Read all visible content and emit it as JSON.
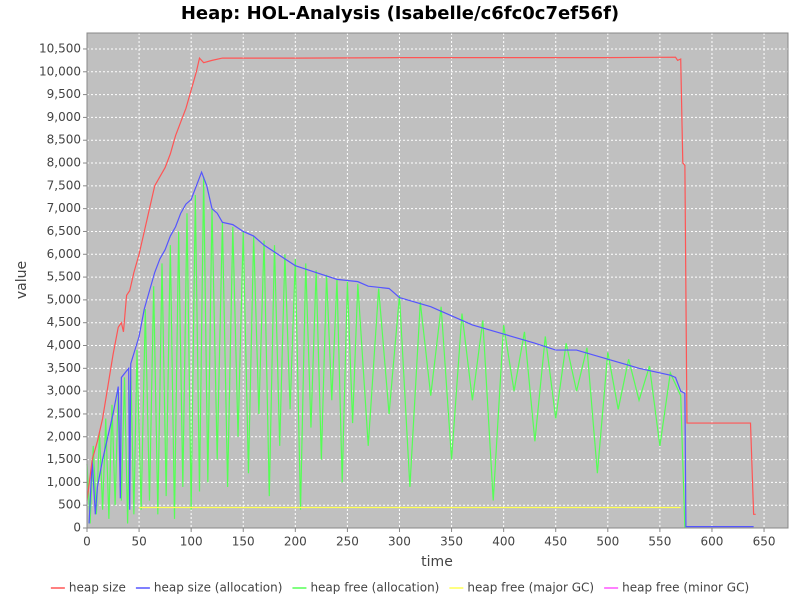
{
  "chart_data": {
    "type": "line",
    "title": "Heap: HOL-Analysis (Isabelle/c6fc0c7ef56f)",
    "x_label": "time",
    "y_label": "value",
    "xlim": [
      0,
      673
    ],
    "ylim": [
      0,
      10850
    ],
    "xticks": [
      0,
      50,
      100,
      150,
      200,
      250,
      300,
      350,
      400,
      450,
      500,
      550,
      600,
      650
    ],
    "yticks": [
      0,
      500,
      {
        "value": 1000,
        "label": "1,000"
      },
      {
        "value": 1500,
        "label": "1,500"
      },
      {
        "value": 2000,
        "label": "2,000"
      },
      {
        "value": 2500,
        "label": "2,500"
      },
      {
        "value": 3000,
        "label": "3,000"
      },
      {
        "value": 3500,
        "label": "3,500"
      },
      {
        "value": 4000,
        "label": "4,000"
      },
      {
        "value": 4500,
        "label": "4,500"
      },
      {
        "value": 5000,
        "label": "5,000"
      },
      {
        "value": 5500,
        "label": "5,500"
      },
      {
        "value": 6000,
        "label": "6,000"
      },
      {
        "value": 6500,
        "label": "6,500"
      },
      {
        "value": 7000,
        "label": "7,000"
      },
      {
        "value": 7500,
        "label": "7,500"
      },
      {
        "value": 8000,
        "label": "8,000"
      },
      {
        "value": 8500,
        "label": "8,500"
      },
      {
        "value": 9000,
        "label": "9,000"
      },
      {
        "value": 9500,
        "label": "9,500"
      },
      {
        "value": 10000,
        "label": "10,000"
      },
      {
        "value": 10500,
        "label": "10,500"
      }
    ],
    "grid": true,
    "legend": "bottom",
    "series": [
      {
        "name": "heap size",
        "color": "#ff5555",
        "x": [
          0,
          5,
          10,
          15,
          20,
          25,
          30,
          33,
          35,
          38,
          41,
          45,
          50,
          55,
          60,
          65,
          70,
          75,
          80,
          85,
          90,
          95,
          100,
          105,
          108,
          112,
          120,
          130,
          140,
          200,
          300,
          400,
          500,
          565,
          567,
          570,
          572,
          574,
          576,
          637,
          640,
          642
        ],
        "values": [
          600,
          1500,
          1900,
          2400,
          3100,
          3800,
          4400,
          4500,
          4300,
          5100,
          5200,
          5600,
          6000,
          6500,
          7000,
          7500,
          7700,
          7900,
          8200,
          8600,
          8900,
          9200,
          9600,
          10000,
          10300,
          10200,
          10250,
          10300,
          10300,
          10300,
          10310,
          10310,
          10310,
          10320,
          10250,
          10280,
          8000,
          7950,
          2300,
          2300,
          300,
          300
        ]
      },
      {
        "name": "heap size (allocation)",
        "color": "#5555ff",
        "x": [
          2,
          5,
          8,
          10,
          15,
          20,
          25,
          30,
          32,
          33,
          40,
          41,
          42,
          50,
          55,
          60,
          65,
          70,
          75,
          80,
          85,
          90,
          95,
          100,
          105,
          110,
          115,
          120,
          125,
          130,
          140,
          150,
          160,
          170,
          180,
          190,
          200,
          220,
          240,
          260,
          270,
          290,
          300,
          330,
          350,
          370,
          400,
          430,
          450,
          470,
          500,
          530,
          560,
          565,
          570,
          574,
          575,
          640
        ],
        "values": [
          100,
          1500,
          300,
          900,
          1500,
          2000,
          2500,
          3100,
          650,
          3300,
          3500,
          400,
          3600,
          4200,
          4800,
          5200,
          5600,
          5900,
          6100,
          6400,
          6600,
          6900,
          7100,
          7200,
          7500,
          7800,
          7500,
          7000,
          6900,
          6700,
          6650,
          6500,
          6400,
          6200,
          6050,
          5900,
          5750,
          5600,
          5450,
          5400,
          5300,
          5250,
          5050,
          4850,
          4650,
          4450,
          4250,
          4050,
          3900,
          3900,
          3700,
          3500,
          3350,
          3300,
          3000,
          2950,
          30,
          30
        ]
      },
      {
        "name": "heap free (allocation)",
        "color": "#55ff55",
        "x": [
          0,
          3,
          6,
          9,
          12,
          15,
          18,
          21,
          24,
          27,
          30,
          33,
          36,
          39,
          42,
          45,
          48,
          52,
          56,
          60,
          64,
          68,
          72,
          76,
          80,
          84,
          88,
          92,
          96,
          100,
          104,
          108,
          112,
          116,
          120,
          125,
          130,
          135,
          140,
          145,
          150,
          155,
          160,
          165,
          170,
          175,
          180,
          185,
          190,
          195,
          200,
          205,
          210,
          215,
          220,
          225,
          230,
          235,
          240,
          245,
          250,
          255,
          260,
          270,
          280,
          290,
          300,
          310,
          320,
          330,
          340,
          350,
          360,
          370,
          380,
          390,
          400,
          410,
          420,
          430,
          440,
          450,
          460,
          470,
          480,
          490,
          500,
          510,
          520,
          530,
          540,
          550,
          560,
          570,
          574
        ],
        "values": [
          1400,
          100,
          1800,
          300,
          2100,
          400,
          2400,
          200,
          2700,
          500,
          3000,
          600,
          3300,
          100,
          3500,
          300,
          3900,
          400,
          4800,
          600,
          5300,
          300,
          5800,
          700,
          6200,
          200,
          6500,
          900,
          6900,
          400,
          7300,
          800,
          7700,
          1000,
          7000,
          1500,
          6700,
          900,
          6600,
          2000,
          6500,
          1200,
          6400,
          2500,
          6300,
          700,
          6200,
          1800,
          6000,
          2600,
          5900,
          400,
          5800,
          2200,
          5650,
          1500,
          5550,
          2800,
          5450,
          1000,
          5400,
          2300,
          5350,
          1800,
          5250,
          2500,
          5100,
          900,
          4950,
          2900,
          4850,
          1500,
          4700,
          2800,
          4550,
          600,
          4450,
          3000,
          4300,
          1900,
          4200,
          2400,
          4050,
          3000,
          3950,
          1200,
          3850,
          2600,
          3700,
          2800,
          3550,
          1800,
          3400,
          2900,
          0
        ]
      },
      {
        "name": "heap free (major GC)",
        "color": "#ffff55",
        "x": [
          50,
          570
        ],
        "values": [
          450,
          450
        ]
      },
      {
        "name": "heap free (minor GC)",
        "color": "#ff55ff",
        "x": [],
        "values": []
      }
    ]
  }
}
